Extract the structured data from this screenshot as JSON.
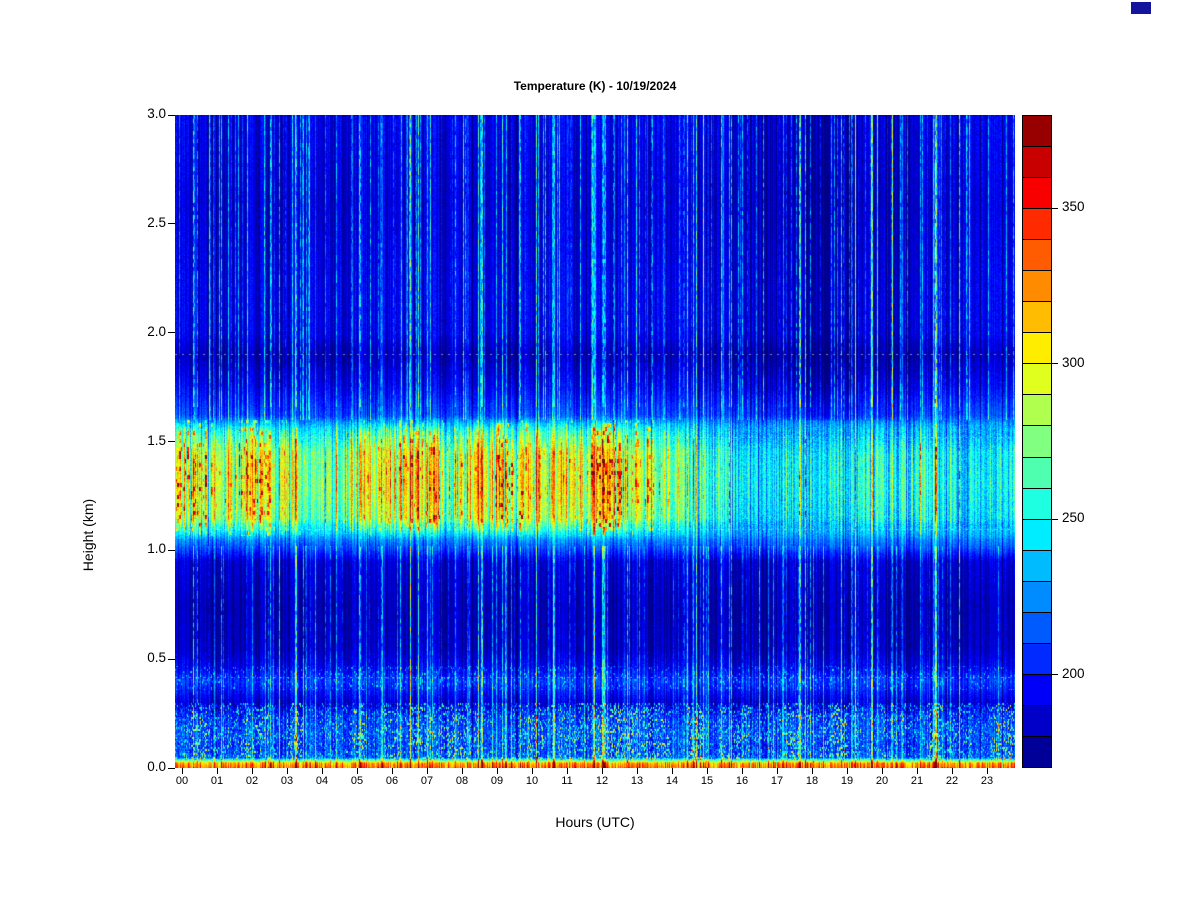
{
  "page": {
    "background": "#ffffff"
  },
  "corner_artifact": {
    "color": "#14149c"
  },
  "chart_data": {
    "type": "heatmap",
    "title": "Temperature (K) - 10/19/2024",
    "xlabel": "Hours (UTC)",
    "ylabel": "Height (km)",
    "x_ticks": [
      "00",
      "01",
      "02",
      "03",
      "04",
      "05",
      "06",
      "07",
      "08",
      "09",
      "10",
      "11",
      "12",
      "13",
      "14",
      "15",
      "16",
      "17",
      "18",
      "19",
      "20",
      "21",
      "22",
      "23"
    ],
    "x_range_hours": [
      0,
      24
    ],
    "y_ticks": [
      "0.0",
      "0.5",
      "1.0",
      "1.5",
      "2.0",
      "2.5",
      "3.0"
    ],
    "y_range_km": [
      0,
      3
    ],
    "value_field": "Temperature (K)",
    "value_range_K": [
      170,
      380
    ],
    "colormap": "jet",
    "colorbar": {
      "tick_values": [
        200,
        250,
        300,
        350
      ],
      "segments": 21
    },
    "height_profile_K": [
      [
        0.0,
        332
      ],
      [
        0.025,
        318
      ],
      [
        0.05,
        212
      ],
      [
        0.1,
        206
      ],
      [
        0.16,
        210
      ],
      [
        0.24,
        203
      ],
      [
        0.3,
        186
      ],
      [
        0.4,
        206
      ],
      [
        0.46,
        192
      ],
      [
        0.55,
        182
      ],
      [
        0.75,
        180
      ],
      [
        0.95,
        186
      ],
      [
        1.05,
        225
      ],
      [
        1.15,
        300
      ],
      [
        1.3,
        312
      ],
      [
        1.45,
        306
      ],
      [
        1.55,
        268
      ],
      [
        1.62,
        210
      ],
      [
        1.75,
        192
      ],
      [
        1.9,
        179
      ],
      [
        2.0,
        190
      ],
      [
        2.2,
        190
      ],
      [
        2.6,
        186
      ],
      [
        3.0,
        190
      ]
    ],
    "warm_band": {
      "bottom_km": 1.05,
      "top_km": 1.6,
      "hourly_intensity": [
        0.9,
        0.85,
        1.0,
        0.9,
        0.7,
        0.85,
        1.0,
        0.95,
        0.9,
        1.0,
        0.95,
        1.0,
        1.0,
        0.9,
        0.8,
        0.65,
        0.5,
        0.45,
        0.4,
        0.45,
        0.5,
        0.55,
        0.5,
        0.45
      ]
    },
    "surface_hot_layer_top_km": 0.03,
    "speckle_band_km": [
      0.04,
      0.3
    ],
    "elevated_speckle_band_km": [
      0.36,
      0.47
    ],
    "quiet_dark_patch": {
      "hours": [
        16,
        21
      ],
      "above_km": 1.6
    },
    "dashed_guide_lines_km": [
      0.42,
      1.1,
      1.52,
      1.9
    ]
  }
}
